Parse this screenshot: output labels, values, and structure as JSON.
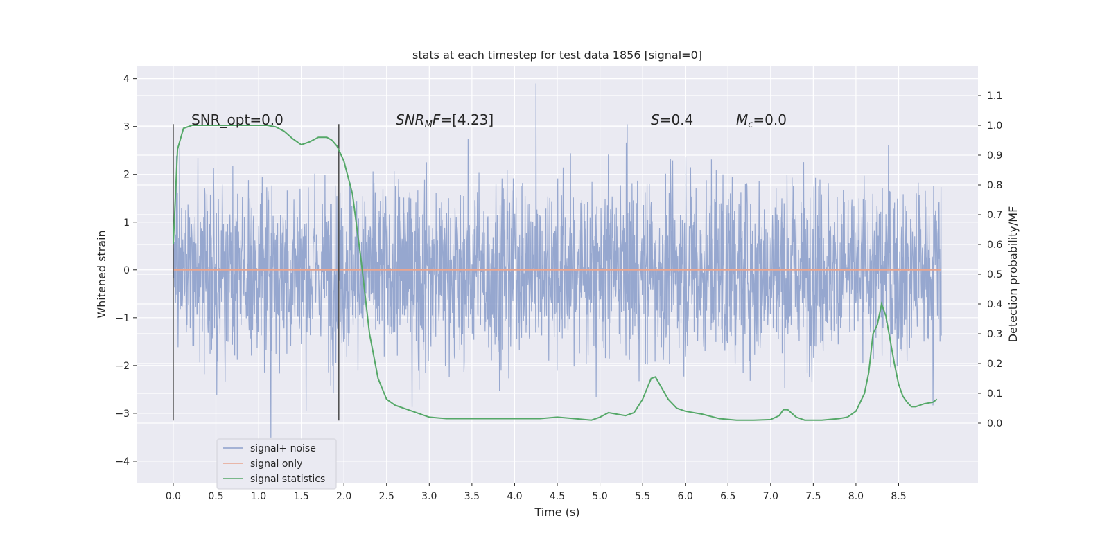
{
  "chart_data": {
    "type": "line",
    "title": "stats at each timestep for test data 1856 [signal=0]",
    "xlabel": "Time (s)",
    "ylabel_left": "Whitened strain",
    "ylabel_right": "Detection probability/MF",
    "xlim": [
      -0.43,
      9.43
    ],
    "ylim_left": [
      -4.45,
      4.27
    ],
    "ylim_right": [
      -0.2,
      1.2
    ],
    "x_ticks": [
      0.0,
      0.5,
      1.0,
      1.5,
      2.0,
      2.5,
      3.0,
      3.5,
      4.0,
      4.5,
      5.0,
      5.5,
      6.0,
      6.5,
      7.0,
      7.5,
      8.0,
      8.5
    ],
    "x_tick_labels": [
      "0.0",
      "0.5",
      "1.0",
      "1.5",
      "2.0",
      "2.5",
      "3.0",
      "3.5",
      "4.0",
      "4.5",
      "5.0",
      "5.5",
      "6.0",
      "6.5",
      "7.0",
      "7.5",
      "8.0",
      "8.5"
    ],
    "y_ticks_left": [
      4,
      3,
      2,
      1,
      0,
      -1,
      -2,
      -3,
      -4
    ],
    "y_tick_labels_left": [
      "4",
      "3",
      "2",
      "1",
      "0",
      "−1",
      "−2",
      "−3",
      "−4"
    ],
    "y_ticks_right": [
      1.1,
      1.0,
      0.9,
      0.8,
      0.7,
      0.6,
      0.5,
      0.4,
      0.3,
      0.2,
      0.1,
      0.0
    ],
    "y_tick_labels_right": [
      "1.1",
      "1.0",
      "0.9",
      "0.8",
      "0.7",
      "0.6",
      "0.5",
      "0.4",
      "0.3",
      "0.2",
      "0.1",
      "0.0"
    ],
    "series": [
      {
        "name": "signal+ noise",
        "axis": "left",
        "color": "#8da0cb",
        "x_range": [
          0.0,
          9.0
        ],
        "typical_range": [
          -1.3,
          1.3
        ],
        "peak_range": [
          -4.0,
          3.9
        ]
      },
      {
        "name": "signal only",
        "axis": "left",
        "color": "#e8a58f",
        "x": [
          0.0,
          9.0
        ],
        "y": [
          0.0,
          0.0
        ]
      },
      {
        "name": "signal statistics",
        "axis": "right",
        "color": "#55a868",
        "x": [
          0.0,
          0.05,
          0.12,
          0.22,
          0.35,
          0.5,
          0.7,
          0.9,
          1.1,
          1.2,
          1.3,
          1.4,
          1.5,
          1.6,
          1.7,
          1.8,
          1.86,
          1.92,
          2.0,
          2.1,
          2.2,
          2.3,
          2.4,
          2.5,
          2.6,
          2.8,
          3.0,
          3.2,
          3.5,
          3.8,
          4.0,
          4.3,
          4.5,
          4.7,
          4.9,
          5.0,
          5.1,
          5.2,
          5.3,
          5.4,
          5.5,
          5.6,
          5.65,
          5.7,
          5.8,
          5.9,
          6.0,
          6.2,
          6.4,
          6.6,
          6.8,
          7.0,
          7.1,
          7.15,
          7.2,
          7.3,
          7.4,
          7.6,
          7.8,
          7.9,
          8.0,
          8.1,
          8.15,
          8.2,
          8.25,
          8.3,
          8.35,
          8.4,
          8.45,
          8.5,
          8.55,
          8.6,
          8.65,
          8.7,
          8.75,
          8.8,
          8.9,
          8.95
        ],
        "y": [
          0.6,
          0.92,
          0.99,
          1.0,
          1.0,
          1.0,
          1.0,
          1.0,
          1.0,
          0.995,
          0.98,
          0.955,
          0.935,
          0.945,
          0.96,
          0.96,
          0.95,
          0.93,
          0.88,
          0.77,
          0.55,
          0.3,
          0.15,
          0.08,
          0.06,
          0.04,
          0.02,
          0.015,
          0.015,
          0.015,
          0.015,
          0.015,
          0.02,
          0.015,
          0.01,
          0.02,
          0.035,
          0.03,
          0.025,
          0.035,
          0.08,
          0.15,
          0.155,
          0.13,
          0.08,
          0.05,
          0.04,
          0.03,
          0.015,
          0.01,
          0.01,
          0.012,
          0.025,
          0.045,
          0.045,
          0.02,
          0.01,
          0.01,
          0.015,
          0.02,
          0.04,
          0.1,
          0.17,
          0.3,
          0.33,
          0.4,
          0.36,
          0.28,
          0.2,
          0.13,
          0.09,
          0.07,
          0.055,
          0.055,
          0.06,
          0.065,
          0.07,
          0.08
        ]
      }
    ],
    "vertical_lines": [
      0.0,
      1.94
    ],
    "annotations": [
      {
        "text": "SNR_opt=0.0",
        "x": 0.2,
        "y": 3.05
      },
      {
        "text": "SNR_MF=[4.23]",
        "x": 2.6,
        "y": 3.05
      },
      {
        "text": "S=0.4",
        "x": 5.6,
        "y": 3.05
      },
      {
        "text": "M_c=0.0",
        "x": 6.6,
        "y": 3.05
      }
    ],
    "legend": {
      "position": "lower-left",
      "entries": [
        "signal+ noise",
        "signal only",
        "signal statistics"
      ]
    },
    "grid": true
  }
}
